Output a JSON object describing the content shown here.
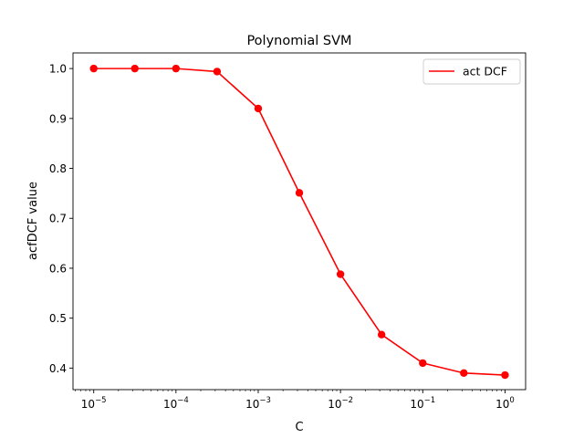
{
  "chart_data": {
    "type": "line",
    "title": "Polynomial SVM",
    "xlabel": "C",
    "ylabel": "acfDCF value",
    "x_scale": "log",
    "xlim": [
      5.6e-06,
      1.78
    ],
    "ylim": [
      0.3568,
      1.0313
    ],
    "x_ticks": [
      {
        "value": 1e-05,
        "base": "10",
        "exp": "−5"
      },
      {
        "value": 0.0001,
        "base": "10",
        "exp": "−4"
      },
      {
        "value": 0.001,
        "base": "10",
        "exp": "−3"
      },
      {
        "value": 0.01,
        "base": "10",
        "exp": "−2"
      },
      {
        "value": 0.1,
        "base": "10",
        "exp": "−1"
      },
      {
        "value": 1,
        "base": "10",
        "exp": "0"
      }
    ],
    "y_ticks": [
      0.4,
      0.5,
      0.6,
      0.7,
      0.8,
      0.9,
      1.0
    ],
    "y_tick_labels": [
      "0.4",
      "0.5",
      "0.6",
      "0.7",
      "0.8",
      "0.9",
      "1.0"
    ],
    "grid": false,
    "legend_position": "upper right",
    "series": [
      {
        "name": "act DCF",
        "color": "#ff0000",
        "marker": "circle",
        "x": [
          1e-05,
          3.16e-05,
          0.0001,
          0.000316,
          0.001,
          0.00316,
          0.01,
          0.0316,
          0.1,
          0.316,
          1
        ],
        "y": [
          1.0,
          1.0,
          1.0,
          0.994,
          0.92,
          0.751,
          0.588,
          0.467,
          0.41,
          0.39,
          0.386
        ]
      }
    ]
  }
}
